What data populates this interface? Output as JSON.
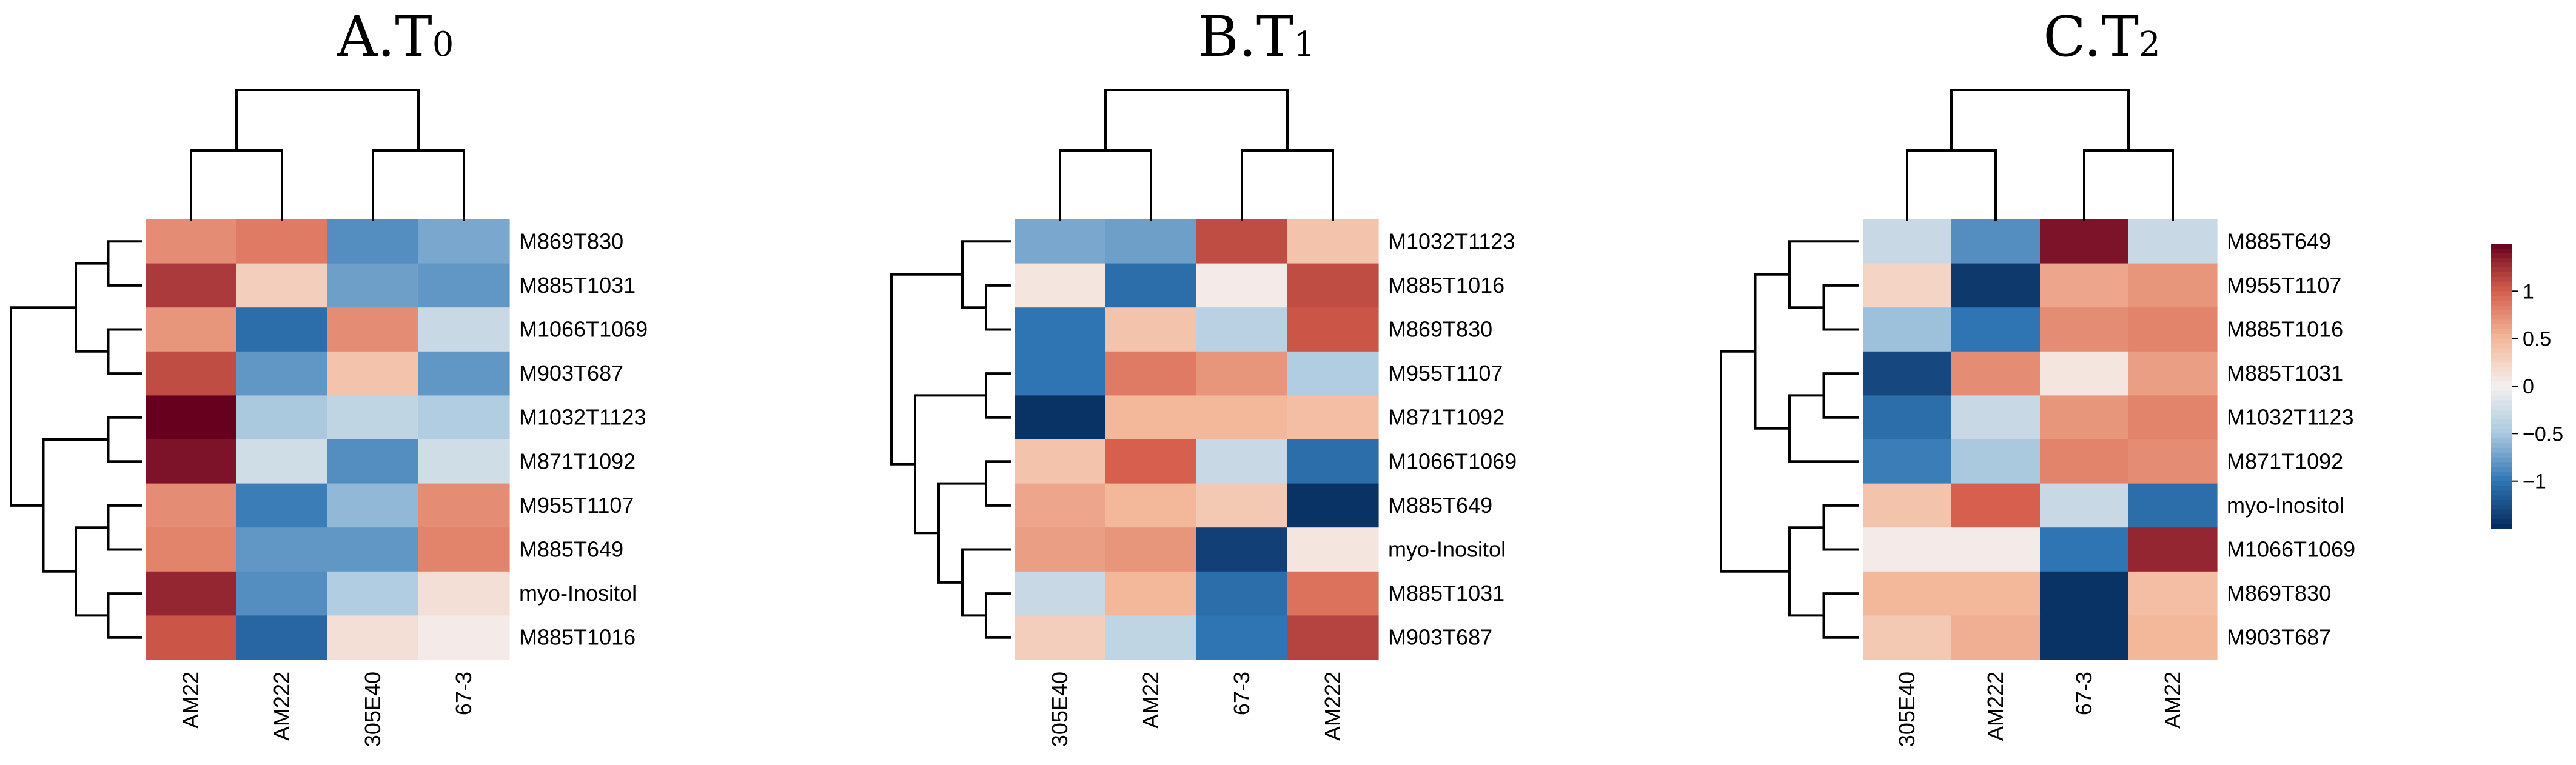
{
  "chart_data": [
    {
      "type": "heatmap",
      "title": "A.T0",
      "title_main": "A.T",
      "title_sub": "0",
      "columns": [
        "AM22",
        "AM222",
        "305E40",
        "67-3"
      ],
      "rows": [
        "M869T830",
        "M885T1031",
        "M1066T1069",
        "M903T687",
        "M1032T1123",
        "M871T1092",
        "M955T1107",
        "M885T649",
        "myo-Inositol",
        "M885T1016"
      ],
      "values": [
        [
          0.75,
          0.85,
          -0.85,
          -0.7
        ],
        [
          1.2,
          0.3,
          -0.75,
          -0.8
        ],
        [
          0.7,
          -1.05,
          0.75,
          -0.3
        ],
        [
          1.1,
          -0.8,
          0.4,
          -0.8
        ],
        [
          1.5,
          -0.5,
          -0.35,
          -0.45
        ],
        [
          1.4,
          -0.25,
          -0.85,
          -0.25
        ],
        [
          0.75,
          -0.95,
          -0.6,
          0.75
        ],
        [
          0.8,
          -0.8,
          -0.8,
          0.8
        ],
        [
          1.3,
          -0.85,
          -0.45,
          0.15
        ],
        [
          1.05,
          -1.1,
          0.15,
          0.05
        ]
      ],
      "col_tree": [
        [
          0,
          1
        ],
        [
          2,
          3
        ]
      ],
      "row_tree": "(((0,1),(2,3)),((4,5),((6,7),(8,9))))"
    },
    {
      "type": "heatmap",
      "title": "B.T1",
      "title_main": "B.T",
      "title_sub": "1",
      "columns": [
        "305E40",
        "AM22",
        "67-3",
        "AM222"
      ],
      "rows": [
        "M1032T1123",
        "M885T1016",
        "M869T830",
        "M955T1107",
        "M871T1092",
        "M1066T1069",
        "M885T649",
        "myo-Inositol",
        "M885T1031",
        "M903T687"
      ],
      "values": [
        [
          -0.7,
          -0.75,
          1.1,
          0.4
        ],
        [
          0.1,
          -1.05,
          0.05,
          1.1
        ],
        [
          -1.0,
          0.4,
          -0.4,
          1.05
        ],
        [
          -1.0,
          0.85,
          0.7,
          -0.45
        ],
        [
          -1.45,
          0.5,
          0.5,
          0.45
        ],
        [
          0.4,
          1.0,
          -0.3,
          -1.05
        ],
        [
          0.6,
          0.5,
          0.35,
          -1.45
        ],
        [
          0.65,
          0.7,
          -1.35,
          0.1
        ],
        [
          -0.3,
          0.5,
          -1.05,
          0.9
        ],
        [
          0.3,
          -0.35,
          -1.0,
          1.15
        ]
      ],
      "col_tree": [
        [
          0,
          1
        ],
        [
          2,
          3
        ]
      ],
      "row_tree": "((0,(1,2)),((3,4),((5,6),(7,(8,9)))))"
    },
    {
      "type": "heatmap",
      "title": "C.T2",
      "title_main": "C.T",
      "title_sub": "2",
      "columns": [
        "305E40",
        "AM222",
        "67-3",
        "AM22"
      ],
      "rows": [
        "M885T649",
        "M955T1107",
        "M885T1016",
        "M885T1031",
        "M1032T1123",
        "M871T1092",
        "myo-Inositol",
        "M1066T1069",
        "M869T830",
        "M903T687"
      ],
      "values": [
        [
          -0.3,
          -0.85,
          1.4,
          -0.3
        ],
        [
          0.25,
          -1.4,
          0.6,
          0.7
        ],
        [
          -0.55,
          -1.0,
          0.75,
          0.8
        ],
        [
          -1.3,
          0.75,
          0.1,
          0.65
        ],
        [
          -1.05,
          -0.3,
          0.7,
          0.8
        ],
        [
          -0.95,
          -0.5,
          0.8,
          0.75
        ],
        [
          0.4,
          1.0,
          -0.3,
          -1.05
        ],
        [
          0.05,
          0.05,
          -1.0,
          1.3
        ],
        [
          0.5,
          0.5,
          -1.45,
          0.45
        ],
        [
          0.35,
          0.55,
          -1.45,
          0.5
        ]
      ],
      "col_tree": [
        [
          0,
          1
        ],
        [
          2,
          3
        ]
      ],
      "row_tree": "(((0,(1,2)),((3,4),5)),((6,7),(8,9)))"
    }
  ],
  "legend": {
    "ticks": [
      1,
      0.5,
      0,
      -0.5,
      -1
    ],
    "tick_labels": [
      "1",
      "0.5",
      "0",
      "−0.5",
      "−1"
    ],
    "range": [
      -1.5,
      1.5
    ]
  },
  "colors": {
    "low": "#052a5c",
    "low_mid": "#2f75b3",
    "mid_low": "#aac9df",
    "mid": "#f4f0ef",
    "mid_high": "#f3b89a",
    "high_mid": "#d6604d",
    "high": "#67001f"
  }
}
